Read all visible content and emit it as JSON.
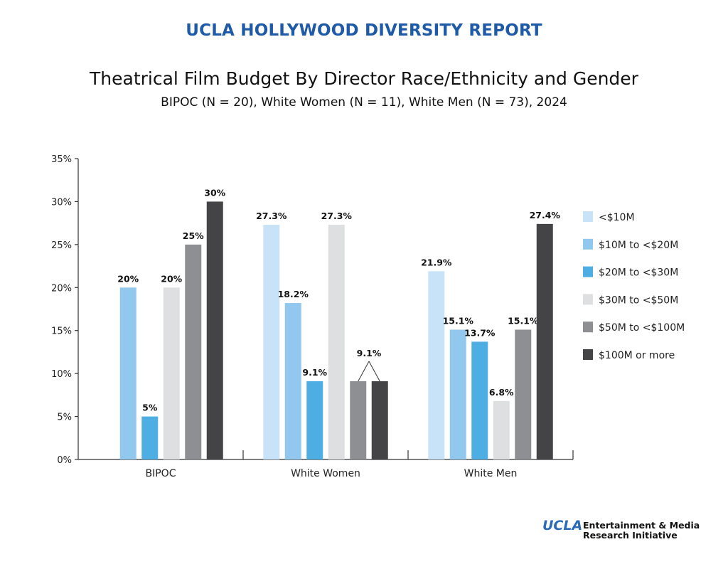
{
  "header": {
    "report_title": "UCLA HOLLYWOOD DIVERSITY REPORT",
    "chart_title": "Theatrical Film Budget By Director Race/Ethnicity and Gender",
    "chart_subtitle": "BIPOC (N = 20), White Women (N = 11), White Men (N = 73), 2024"
  },
  "logo": {
    "mark": "UCLA",
    "line1": "Entertainment & Media",
    "line2": "Research Initiative"
  },
  "chart_data": {
    "type": "bar",
    "categories": [
      "BIPOC",
      "White Women",
      "White Men"
    ],
    "ylim": [
      0,
      35
    ],
    "yticks": [
      "0%",
      "5%",
      "10%",
      "15%",
      "20%",
      "25%",
      "30%",
      "35%"
    ],
    "grid": false,
    "legend_position": "right",
    "series": [
      {
        "name": "<$10M",
        "color": "#c8e3f7",
        "values": [
          null,
          27.3,
          21.9
        ],
        "labels": [
          "",
          "27.3%",
          "21.9%"
        ]
      },
      {
        "name": "$10M to <$20M",
        "color": "#92c7ee",
        "values": [
          20,
          18.2,
          15.1
        ],
        "labels": [
          "20%",
          "18.2%",
          "15.1%"
        ]
      },
      {
        "name": "$20M to <$30M",
        "color": "#4eaee3",
        "values": [
          5,
          9.1,
          13.7
        ],
        "labels": [
          "5%",
          "9.1%",
          "13.7%"
        ]
      },
      {
        "name": "$30M to <$50M",
        "color": "#dedfe1",
        "values": [
          20,
          27.3,
          6.8
        ],
        "labels": [
          "20%",
          "27.3%",
          "6.8%"
        ]
      },
      {
        "name": "$50M to <$100M",
        "color": "#8e8f93",
        "values": [
          25,
          9.1,
          15.1
        ],
        "labels": [
          "25%",
          "9.1%",
          "15.1%"
        ]
      },
      {
        "name": "$100M or more",
        "color": "#444446",
        "values": [
          30,
          9.1,
          27.4
        ],
        "labels": [
          "30%",
          "9.1%",
          "27.4%"
        ]
      }
    ],
    "annotations": [
      {
        "category": "White Women",
        "series": [
          "$50M to <$100M",
          "$100M or more"
        ],
        "label": "9.1%",
        "type": "shared-callout"
      }
    ]
  }
}
